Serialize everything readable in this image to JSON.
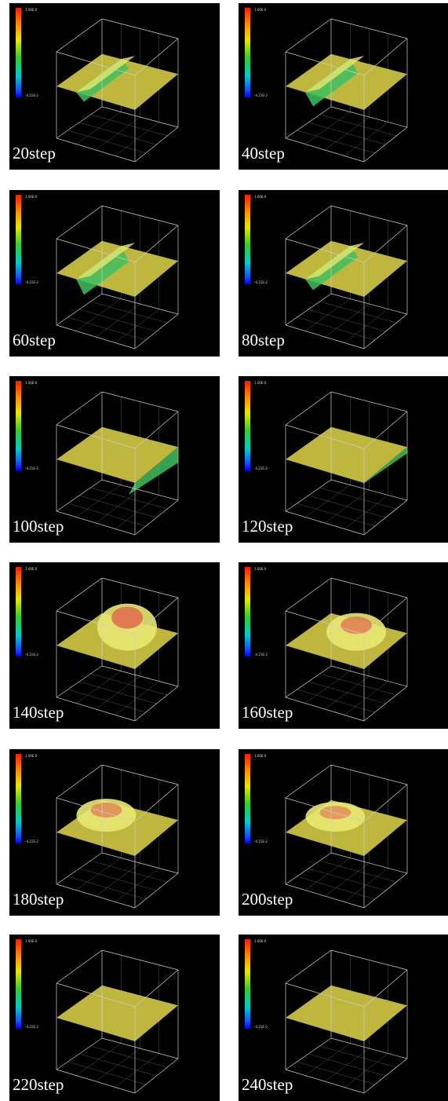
{
  "colorbar": {
    "max_label": "1.00E-0",
    "min_label": "-4.21E-2"
  },
  "panels": [
    {
      "label": "20step",
      "shape": "plateau-right",
      "peak": 0.0,
      "dip": 0.3
    },
    {
      "label": "40step",
      "shape": "plateau-right",
      "peak": 0.0,
      "dip": 0.45
    },
    {
      "label": "60step",
      "shape": "wave-mid",
      "peak": 0.0,
      "dip": 0.5
    },
    {
      "label": "80step",
      "shape": "wave-mid",
      "peak": 0.0,
      "dip": 0.35
    },
    {
      "label": "100step",
      "shape": "flat-edge",
      "peak": 0.0,
      "dip": 0.25
    },
    {
      "label": "120step",
      "shape": "flat-edge",
      "peak": 0.0,
      "dip": 0.1
    },
    {
      "label": "140step",
      "shape": "hump",
      "peak": 1.0,
      "dip": 0.0
    },
    {
      "label": "160step",
      "shape": "hump",
      "peak": 0.7,
      "dip": 0.0
    },
    {
      "label": "180step",
      "shape": "hump-left",
      "peak": 0.55,
      "dip": 0.0
    },
    {
      "label": "200step",
      "shape": "hump-left",
      "peak": 0.45,
      "dip": 0.0
    },
    {
      "label": "220step",
      "shape": "flat",
      "peak": 0.1,
      "dip": 0.0
    },
    {
      "label": "240step",
      "shape": "flat",
      "peak": 0.0,
      "dip": 0.0
    }
  ],
  "colors": {
    "surface": "#c8c040",
    "surface_light": "#e8e870",
    "hump": "#e07050",
    "wave": "#40c060",
    "box": "#cfcfcf",
    "grid": "#555555"
  }
}
